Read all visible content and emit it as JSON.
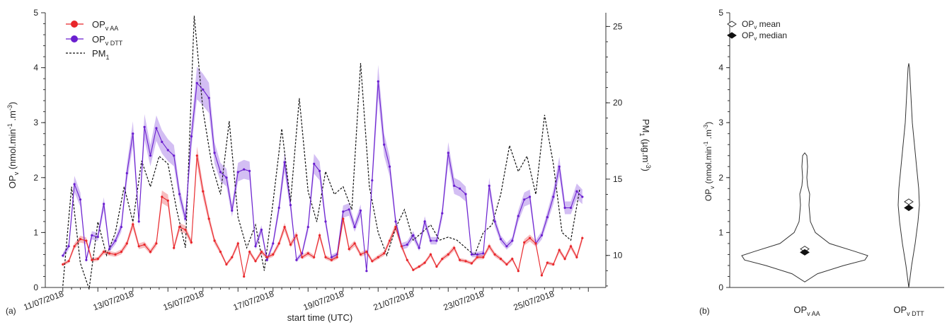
{
  "panel_labels": {
    "a": "(a)",
    "b": "(b)"
  },
  "colors": {
    "aa": "#e8262a",
    "dtt": "#6a1fcf",
    "pm1": "#111111",
    "axis": "#333333"
  },
  "left_panel": {
    "y_left_label_main": "OP",
    "y_left_label_sub": "v",
    "y_left_label_rest": " (nmol.min",
    "y_left_label_exp1": "-1",
    "y_left_label_mid": " .m",
    "y_left_label_exp2": "-3",
    "y_left_label_end": ")",
    "y_right_label_main": "PM",
    "y_right_label_sub": "1",
    "y_right_label_rest": " (µg.m",
    "y_right_label_exp": "-3",
    "y_right_label_end": ")",
    "x_label": "start time (UTC)",
    "legend": [
      {
        "main": "OP",
        "sub": "v AA",
        "style": "red-marker"
      },
      {
        "main": "OP",
        "sub": "v DTT",
        "style": "purple-marker"
      },
      {
        "main": "PM",
        "sub": "1",
        "style": "dashed"
      }
    ]
  },
  "right_panel": {
    "y_label_main": "OP",
    "y_label_sub": "v",
    "y_label_rest": " (nmol.min",
    "y_label_exp1": "-1",
    "y_label_mid": " .m",
    "y_label_exp2": "-3",
    "y_label_end": ")",
    "legend": [
      {
        "main": "OP",
        "sub": "v",
        "rest": " mean",
        "marker": "open-diamond"
      },
      {
        "main": "OP",
        "sub": "v",
        "rest": " median",
        "marker": "filled-diamond"
      }
    ],
    "categories": [
      {
        "main": "OP",
        "sub": "v AA"
      },
      {
        "main": "OP",
        "sub": "v DTT"
      }
    ]
  },
  "chart_data": [
    {
      "type": "line",
      "x_ticks": [
        "11/07/2018",
        "13/07/2018",
        "15/07/2018",
        "17/07/2018",
        "19/07/2018",
        "21/07/2018",
        "23/07/2018",
        "25/07/2018"
      ],
      "x_range_days": [
        10.5,
        26.5
      ],
      "ylim_left": [
        0,
        5
      ],
      "y_ticks_left": [
        0,
        1,
        2,
        3,
        4,
        5
      ],
      "ylim_right": [
        7.9,
        25.9
      ],
      "y_ticks_right": [
        10,
        15,
        20,
        25
      ],
      "series": [
        {
          "name": "OPv AA",
          "axis": "left",
          "x": [
            11.0,
            11.17,
            11.33,
            11.5,
            11.67,
            11.83,
            12.0,
            12.17,
            12.33,
            12.5,
            12.67,
            12.83,
            13.0,
            13.17,
            13.33,
            13.5,
            13.67,
            13.83,
            14.0,
            14.17,
            14.33,
            14.5,
            14.67,
            14.83,
            15.0,
            15.17,
            15.33,
            15.5,
            15.67,
            15.83,
            16.0,
            16.17,
            16.33,
            16.5,
            16.67,
            16.83,
            17.0,
            17.17,
            17.33,
            17.5,
            17.67,
            17.83,
            18.0,
            18.17,
            18.33,
            18.5,
            18.67,
            18.83,
            19.0,
            19.17,
            19.33,
            19.5,
            19.67,
            19.83,
            20.0,
            20.17,
            20.33,
            20.5,
            20.67,
            20.83,
            21.0,
            21.17,
            21.33,
            21.5,
            21.67,
            21.83,
            22.0,
            22.17,
            22.33,
            22.5,
            22.67,
            22.83,
            23.0,
            23.17,
            23.33,
            23.5,
            23.67,
            23.83,
            24.0,
            24.17,
            24.33,
            24.5,
            24.67,
            24.83,
            25.0,
            25.17,
            25.33,
            25.5,
            25.67,
            25.83
          ],
          "values": [
            0.42,
            0.48,
            0.75,
            0.88,
            0.85,
            0.5,
            0.52,
            0.65,
            0.62,
            0.6,
            0.65,
            0.8,
            1.15,
            0.75,
            0.78,
            0.65,
            0.8,
            1.65,
            1.58,
            0.72,
            1.1,
            1.05,
            0.82,
            2.4,
            1.75,
            1.25,
            0.85,
            0.65,
            0.42,
            0.55,
            0.8,
            0.2,
            0.65,
            0.48,
            0.65,
            0.55,
            0.6,
            0.8,
            1.1,
            0.78,
            0.95,
            0.55,
            0.62,
            0.55,
            0.95,
            0.55,
            0.5,
            0.55,
            1.25,
            0.7,
            0.8,
            0.6,
            0.65,
            0.48,
            0.55,
            0.62,
            0.85,
            1.1,
            0.75,
            0.5,
            0.32,
            0.38,
            0.45,
            0.6,
            0.38,
            0.52,
            0.6,
            0.72,
            0.5,
            0.48,
            0.44,
            0.55,
            0.55,
            0.75,
            0.6,
            0.52,
            0.42,
            0.52,
            0.3,
            0.82,
            0.9,
            0.8,
            0.22,
            0.45,
            0.42,
            0.68,
            0.52,
            0.75,
            0.55,
            0.9
          ]
        },
        {
          "name": "OPv DTT",
          "axis": "left",
          "x": [
            11.0,
            11.17,
            11.33,
            11.5,
            11.67,
            11.83,
            12.0,
            12.17,
            12.33,
            12.5,
            12.67,
            12.83,
            13.0,
            13.17,
            13.33,
            13.5,
            13.67,
            13.83,
            14.0,
            14.17,
            14.33,
            14.5,
            14.67,
            14.83,
            15.0,
            15.17,
            15.33,
            15.5,
            15.67,
            15.83,
            16.0,
            16.17,
            16.33,
            16.5,
            16.67,
            16.83,
            17.0,
            17.17,
            17.33,
            17.5,
            17.67,
            17.83,
            18.0,
            18.17,
            18.33,
            18.5,
            18.67,
            18.83,
            19.0,
            19.17,
            19.33,
            19.5,
            19.67,
            19.83,
            20.0,
            20.17,
            20.33,
            20.5,
            20.67,
            20.83,
            21.0,
            21.17,
            21.33,
            21.5,
            21.67,
            21.83,
            22.0,
            22.17,
            22.33,
            22.5,
            22.67,
            22.83,
            23.0,
            23.17,
            23.33,
            23.5,
            23.67,
            23.83,
            24.0,
            24.17,
            24.33,
            24.5,
            24.67,
            24.83,
            25.0,
            25.17,
            25.33,
            25.5,
            25.67,
            25.83
          ],
          "values": [
            0.58,
            0.75,
            1.88,
            1.6,
            0.5,
            0.95,
            0.92,
            1.52,
            0.7,
            0.85,
            1.1,
            2.08,
            2.8,
            1.2,
            2.92,
            2.4,
            2.9,
            2.65,
            2.5,
            2.4,
            1.7,
            1.25,
            2.75,
            3.72,
            3.6,
            3.45,
            2.45,
            2.1,
            2.0,
            1.4,
            2.1,
            2.15,
            2.12,
            0.75,
            1.05,
            0.5,
            0.8,
            1.45,
            2.28,
            1.5,
            0.5,
            0.62,
            1.1,
            2.25,
            2.12,
            1.2,
            0.55,
            0.6,
            1.38,
            1.42,
            1.1,
            1.4,
            0.3,
            1.95,
            3.75,
            2.6,
            2.2,
            1.2,
            0.75,
            0.78,
            0.95,
            0.72,
            1.2,
            0.85,
            0.85,
            1.35,
            2.45,
            1.85,
            1.8,
            1.7,
            0.6,
            0.6,
            0.62,
            1.85,
            1.2,
            0.88,
            0.75,
            0.85,
            1.3,
            1.6,
            1.65,
            0.8,
            0.95,
            1.28,
            1.65,
            2.2,
            1.45,
            1.45,
            1.75,
            1.65
          ]
        },
        {
          "name": "PM1",
          "axis": "right",
          "x": [
            11.0,
            11.25,
            11.5,
            11.75,
            12.0,
            12.25,
            12.5,
            12.75,
            13.0,
            13.25,
            13.5,
            13.75,
            14.0,
            14.25,
            14.5,
            14.75,
            15.0,
            15.25,
            15.5,
            15.75,
            16.0,
            16.25,
            16.5,
            16.75,
            17.0,
            17.25,
            17.5,
            17.75,
            18.0,
            18.25,
            18.5,
            18.75,
            19.0,
            19.25,
            19.5,
            19.75,
            20.0,
            20.25,
            20.5,
            20.75,
            21.0,
            21.25,
            21.5,
            21.75,
            22.0,
            22.25,
            22.5,
            22.75,
            23.0,
            23.25,
            23.5,
            23.75,
            24.0,
            24.25,
            24.5,
            24.75,
            25.0,
            25.25,
            25.5,
            25.75
          ],
          "values": [
            8.0,
            14.5,
            9.5,
            7.8,
            12.2,
            10.0,
            11.5,
            14.5,
            12.2,
            16.2,
            14.5,
            16.5,
            16.0,
            13.0,
            10.5,
            25.7,
            19.5,
            16.0,
            14.0,
            18.8,
            12.5,
            10.5,
            12.0,
            9.0,
            13.5,
            18.3,
            13.5,
            20.3,
            14.2,
            12.2,
            15.5,
            14.0,
            14.5,
            13.0,
            22.6,
            14.5,
            11.5,
            10.0,
            11.8,
            13.0,
            11.0,
            11.5,
            12.0,
            11.0,
            11.2,
            11.0,
            10.5,
            10.0,
            11.5,
            12.0,
            14.0,
            17.2,
            15.5,
            16.5,
            14.0,
            19.2,
            16.0,
            11.5,
            11.0,
            14.3
          ]
        }
      ]
    },
    {
      "type": "violin",
      "categories": [
        "OPv AA",
        "OPv DTT"
      ],
      "ylim": [
        0,
        5
      ],
      "y_ticks": [
        0,
        1,
        2,
        3,
        4,
        5
      ],
      "mean": [
        0.7,
        1.56
      ],
      "median": [
        0.64,
        1.45
      ],
      "range": [
        [
          0.1,
          2.45
        ],
        [
          0.0,
          4.08
        ]
      ]
    }
  ]
}
